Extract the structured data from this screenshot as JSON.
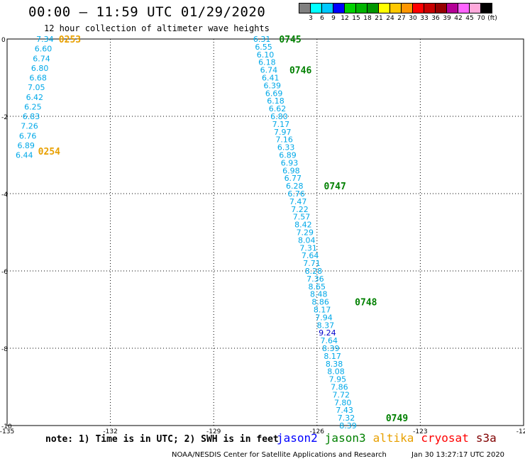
{
  "header": {
    "title": "00:00 – 11:59 UTC 01/29/2020",
    "subtitle": "12 hour collection of altimeter wave heights"
  },
  "color_legend": {
    "unit": "(ft)",
    "colors": [
      "#808080",
      "#00ffff",
      "#00c8ff",
      "#0000ff",
      "#00d200",
      "#00b400",
      "#009600",
      "#ffff00",
      "#ffc800",
      "#ff9600",
      "#ff0000",
      "#c80000",
      "#960000",
      "#b40096",
      "#ff64ff",
      "#ffaadc",
      "#000000"
    ],
    "labels": [
      "3",
      "6",
      "9",
      "12",
      "15",
      "18",
      "21",
      "24",
      "27",
      "30",
      "33",
      "36",
      "39",
      "42",
      "45",
      "70",
      "(ft)"
    ]
  },
  "map": {
    "x_ticks": [
      -135,
      -132,
      -129,
      -126,
      -123,
      -120
    ],
    "x_tick_labels": [
      "-135",
      "-132",
      "-129",
      "-126",
      "-123",
      "-120"
    ],
    "y_ticks": [
      0,
      -2,
      -4,
      -6,
      -8,
      -10
    ],
    "y_tick_labels": [
      "0",
      "-2",
      "-4",
      "-6",
      "-8",
      "-10"
    ],
    "xlim": [
      -135,
      -120
    ],
    "ylim": [
      -10,
      0
    ]
  },
  "tracks": [
    {
      "satellite": "altika",
      "color": "#00a8e8",
      "times": [
        {
          "label": "0253",
          "lon": -133.5,
          "lat": 0.0
        },
        {
          "label": "0254",
          "lon": -134.1,
          "lat": -2.9
        }
      ],
      "points": [
        {
          "lon": -133.9,
          "lat": 0.0,
          "swh": "7.34"
        },
        {
          "lon": -133.95,
          "lat": -0.25,
          "swh": "6.60"
        },
        {
          "lon": -134.0,
          "lat": -0.5,
          "swh": "6.74"
        },
        {
          "lon": -134.05,
          "lat": -0.75,
          "swh": "6.80"
        },
        {
          "lon": -134.1,
          "lat": -1.0,
          "swh": "6.68"
        },
        {
          "lon": -134.15,
          "lat": -1.25,
          "swh": "7.05"
        },
        {
          "lon": -134.2,
          "lat": -1.5,
          "swh": "6.42"
        },
        {
          "lon": -134.25,
          "lat": -1.75,
          "swh": "6.25"
        },
        {
          "lon": -134.3,
          "lat": -2.0,
          "swh": "6.83"
        },
        {
          "lon": -134.35,
          "lat": -2.25,
          "swh": "7.26"
        },
        {
          "lon": -134.4,
          "lat": -2.5,
          "swh": "6.76"
        },
        {
          "lon": -134.45,
          "lat": -2.75,
          "swh": "6.89"
        },
        {
          "lon": -134.5,
          "lat": -3.0,
          "swh": "6.44"
        }
      ]
    },
    {
      "satellite": "jason3",
      "color": "#00a8e8",
      "times": [
        {
          "label": "0745",
          "lon": -127.1,
          "lat": 0.0
        },
        {
          "label": "0746",
          "lon": -126.8,
          "lat": -0.8
        },
        {
          "label": "0747",
          "lon": -125.8,
          "lat": -3.8
        },
        {
          "label": "0748",
          "lon": -124.9,
          "lat": -6.8
        },
        {
          "lon": -124.0,
          "lat": -9.8,
          "label": "0749"
        }
      ],
      "points": [
        {
          "lon": -127.6,
          "lat": 0.0,
          "swh": "6.31"
        },
        {
          "lon": -127.55,
          "lat": -0.2,
          "swh": "6.55"
        },
        {
          "lon": -127.5,
          "lat": -0.4,
          "swh": "6.10"
        },
        {
          "lon": -127.45,
          "lat": -0.6,
          "swh": "6.18"
        },
        {
          "lon": -127.4,
          "lat": -0.8,
          "swh": "6.74"
        },
        {
          "lon": -127.35,
          "lat": -1.0,
          "swh": "6.41"
        },
        {
          "lon": -127.3,
          "lat": -1.2,
          "swh": "6.39"
        },
        {
          "lon": -127.25,
          "lat": -1.4,
          "swh": "6.69"
        },
        {
          "lon": -127.2,
          "lat": -1.6,
          "swh": "6.18"
        },
        {
          "lon": -127.15,
          "lat": -1.8,
          "swh": "6.62"
        },
        {
          "lon": -127.1,
          "lat": -2.0,
          "swh": "6.80"
        },
        {
          "lon": -127.05,
          "lat": -2.2,
          "swh": "7.17"
        },
        {
          "lon": -127.0,
          "lat": -2.4,
          "swh": "7.97"
        },
        {
          "lon": -126.95,
          "lat": -2.6,
          "swh": "7.16"
        },
        {
          "lon": -126.9,
          "lat": -2.8,
          "swh": "6.33"
        },
        {
          "lon": -126.85,
          "lat": -3.0,
          "swh": "6.89"
        },
        {
          "lon": -126.8,
          "lat": -3.2,
          "swh": "6.93"
        },
        {
          "lon": -126.75,
          "lat": -3.4,
          "swh": "6.98"
        },
        {
          "lon": -126.7,
          "lat": -3.6,
          "swh": "6.77"
        },
        {
          "lon": -126.65,
          "lat": -3.8,
          "swh": "6.28"
        },
        {
          "lon": -126.6,
          "lat": -4.0,
          "swh": "6.76"
        },
        {
          "lon": -126.55,
          "lat": -4.2,
          "swh": "7.47"
        },
        {
          "lon": -126.5,
          "lat": -4.4,
          "swh": "7.22"
        },
        {
          "lon": -126.45,
          "lat": -4.6,
          "swh": "7.57"
        },
        {
          "lon": -126.4,
          "lat": -4.8,
          "swh": "8.42"
        },
        {
          "lon": -126.35,
          "lat": -5.0,
          "swh": "7.29"
        },
        {
          "lon": -126.3,
          "lat": -5.2,
          "swh": "8.04"
        },
        {
          "lon": -126.25,
          "lat": -5.4,
          "swh": "7.31"
        },
        {
          "lon": -126.2,
          "lat": -5.6,
          "swh": "7.64"
        },
        {
          "lon": -126.15,
          "lat": -5.8,
          "swh": "7.71"
        },
        {
          "lon": -126.1,
          "lat": -6.0,
          "swh": "8.28"
        },
        {
          "lon": -126.05,
          "lat": -6.2,
          "swh": "7.36"
        },
        {
          "lon": -126.0,
          "lat": -6.4,
          "swh": "8.65"
        },
        {
          "lon": -125.95,
          "lat": -6.6,
          "swh": "8.48"
        },
        {
          "lon": -125.9,
          "lat": -6.8,
          "swh": "8.86"
        },
        {
          "lon": -125.85,
          "lat": -7.0,
          "swh": "8.17"
        },
        {
          "lon": -125.8,
          "lat": -7.2,
          "swh": "7.94"
        },
        {
          "lon": -125.75,
          "lat": -7.4,
          "swh": "8.37"
        },
        {
          "lon": -125.7,
          "lat": -7.6,
          "swh": "9.24",
          "color": "#0000cc"
        },
        {
          "lon": -125.65,
          "lat": -7.8,
          "swh": "7.64"
        },
        {
          "lon": -125.6,
          "lat": -8.0,
          "swh": "8.39"
        },
        {
          "lon": -125.55,
          "lat": -8.2,
          "swh": "8.17"
        },
        {
          "lon": -125.5,
          "lat": -8.4,
          "swh": "8.38"
        },
        {
          "lon": -125.45,
          "lat": -8.6,
          "swh": "8.08"
        },
        {
          "lon": -125.4,
          "lat": -8.8,
          "swh": "7.95"
        },
        {
          "lon": -125.35,
          "lat": -9.0,
          "swh": "7.86"
        },
        {
          "lon": -125.3,
          "lat": -9.2,
          "swh": "7.72"
        },
        {
          "lon": -125.25,
          "lat": -9.4,
          "swh": "7.80"
        },
        {
          "lon": -125.2,
          "lat": -9.6,
          "swh": "7.43"
        },
        {
          "lon": -125.15,
          "lat": -9.8,
          "swh": "7.32"
        },
        {
          "lon": -125.1,
          "lat": -10.0,
          "swh": "8.39"
        }
      ]
    }
  ],
  "time_label_colors": {
    "altika": "#e8a000",
    "jason3": "#008000"
  },
  "footer": {
    "note": "note: 1) Time is in UTC; 2) SWH is in feet",
    "satellites": [
      {
        "name": "jason2",
        "color": "#0000ff"
      },
      {
        "name": "jason3",
        "color": "#008000"
      },
      {
        "name": "altika",
        "color": "#e8a000"
      },
      {
        "name": "cryosat",
        "color": "#ff0000"
      },
      {
        "name": "s3a",
        "color": "#800000"
      }
    ],
    "credit": "NOAA/NESDIS Center for Satellite Applications and Research",
    "timestamp": "Jan 30 13:27:17 UTC 2020"
  }
}
